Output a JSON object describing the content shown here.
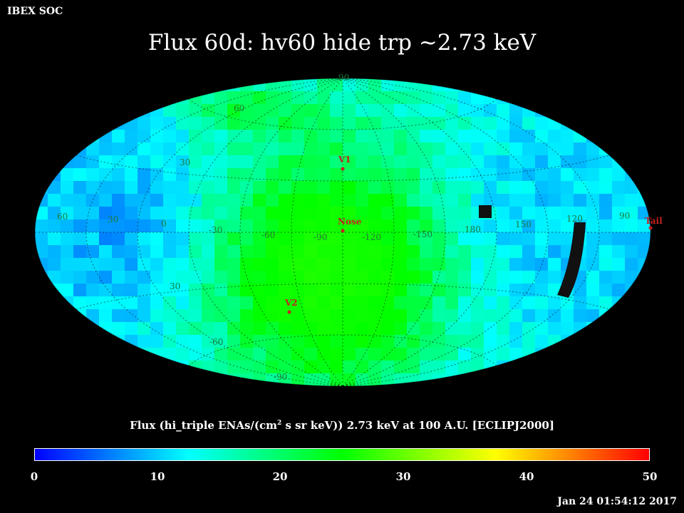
{
  "header": {
    "org_label": "IBEX SOC",
    "title": "Flux   60d: hv60 hide trp ~2.73 keV"
  },
  "map": {
    "projection": "aitoff",
    "grid_labels": {
      "latitudes": [
        "60",
        "30",
        "30",
        "-30",
        "-60",
        "-90",
        "90"
      ],
      "longitudes": [
        "60",
        "30",
        "0",
        "-30",
        "-60",
        "-90",
        "-120",
        "-150",
        "180",
        "150",
        "120",
        "90"
      ]
    },
    "markers": [
      {
        "label": "V1",
        "color": "#ff3030"
      },
      {
        "label": "Nose",
        "color": "#ff3030"
      },
      {
        "label": "V2",
        "color": "#ff3030"
      },
      {
        "label": "Tail",
        "color": "#ff3030"
      }
    ]
  },
  "colorbar": {
    "title_prefix": "Flux (hi_triple ENAs/(cm",
    "title_sup": "2",
    "title_suffix": " s sr keV))  2.73 keV at 100 A.U. [ECLIPJ2000]",
    "ticks": [
      "0",
      "10",
      "20",
      "30",
      "40",
      "50"
    ],
    "range": [
      0,
      50
    ],
    "colors": [
      "#0000ff",
      "#00ffff",
      "#00ff00",
      "#ffff00",
      "#ff0000"
    ]
  },
  "footer": {
    "timestamp": "Jan 24 01:54:12 2017"
  }
}
